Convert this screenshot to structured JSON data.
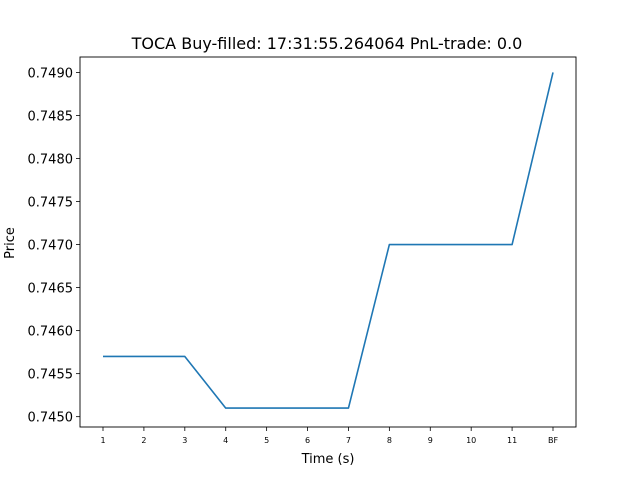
{
  "chart_data": {
    "type": "line",
    "title": "TOCA  Buy-filled:  17:31:55.264064  PnL-trade:  0.0",
    "xlabel": "Time (s)",
    "ylabel": "Price",
    "categories": [
      "1",
      "2",
      "3",
      "4",
      "5",
      "6",
      "7",
      "8",
      "9",
      "10",
      "11",
      "BF"
    ],
    "series": [
      {
        "values": [
          0.7457,
          0.7457,
          0.7457,
          0.7451,
          0.7451,
          0.7451,
          0.7451,
          0.747,
          0.747,
          0.747,
          0.747,
          0.749
        ],
        "color": "#1f77b4"
      }
    ],
    "ylim": [
      0.74488,
      0.74918
    ],
    "yticks": [
      {
        "value": 0.745,
        "label": "0.7450"
      },
      {
        "value": 0.7455,
        "label": "0.7455"
      },
      {
        "value": 0.746,
        "label": "0.7460"
      },
      {
        "value": 0.7465,
        "label": "0.7465"
      },
      {
        "value": 0.747,
        "label": "0.7470"
      },
      {
        "value": 0.7475,
        "label": "0.7475"
      },
      {
        "value": 0.748,
        "label": "0.7480"
      },
      {
        "value": 0.7485,
        "label": "0.7485"
      },
      {
        "value": 0.749,
        "label": "0.7490"
      }
    ],
    "grid": false,
    "legend": "none"
  }
}
